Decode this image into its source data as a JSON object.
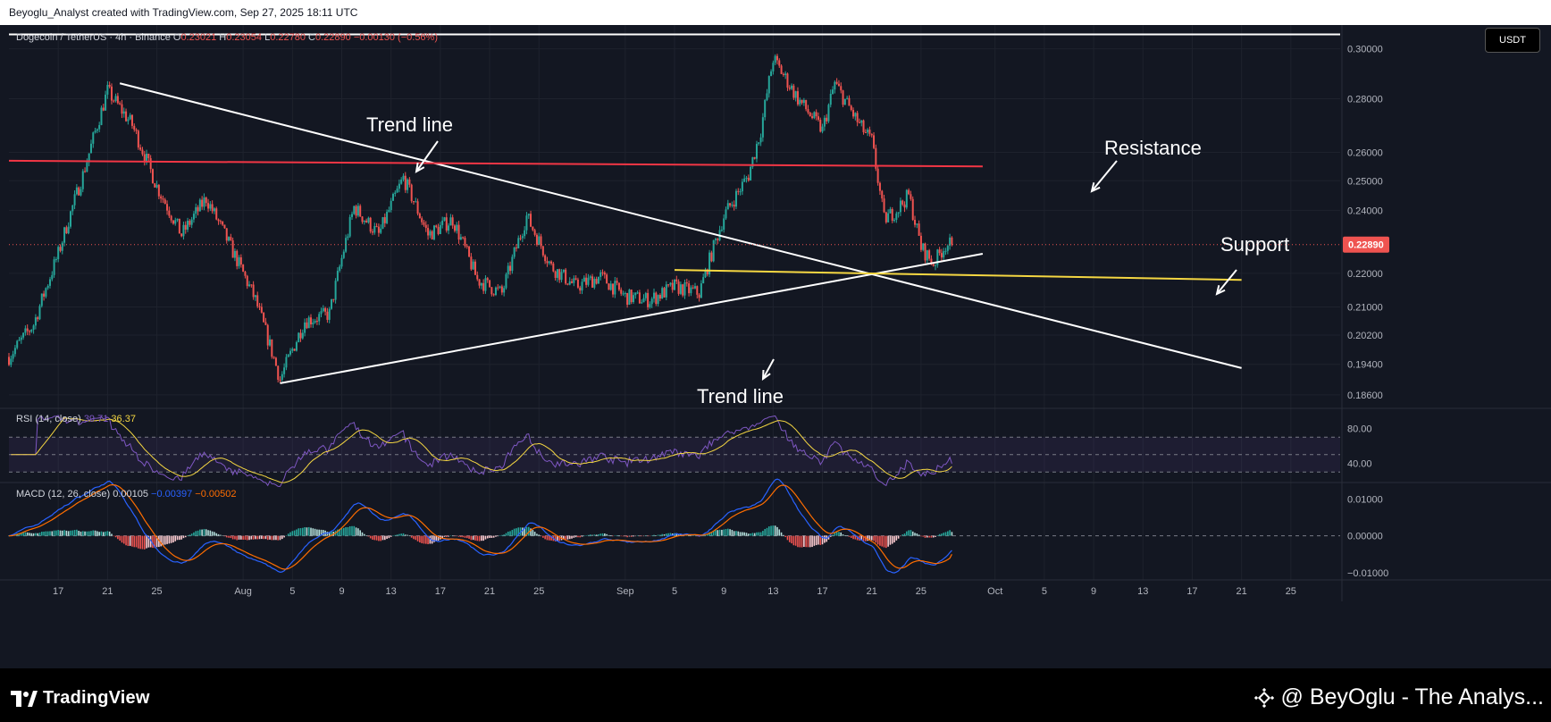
{
  "header": {
    "credit": "Beyoglu_Analyst created with TradingView.com, Sep 27, 2025 18:11 UTC"
  },
  "legend": {
    "symbol": "Dogecoin / TetherUS · 4h · Binance",
    "open_label": "O",
    "open": "0.23021",
    "high_label": "H",
    "high": "0.23054",
    "low_label": "L",
    "low": "0.22780",
    "close_label": "C",
    "close": "0.22890",
    "change": "−0.00130 (−0.56%)"
  },
  "currency_button": "USDT",
  "price_axis": {
    "ticks": [
      "0.30000",
      "0.28000",
      "0.26000",
      "0.25000",
      "0.24000",
      "0.22000",
      "0.21000",
      "0.20200",
      "0.19400",
      "0.18600"
    ],
    "last_price": "0.22890"
  },
  "annotations": {
    "trend_line_top": "Trend line",
    "trend_line_bottom": "Trend line",
    "resistance": "Resistance",
    "support": "Support"
  },
  "rsi": {
    "label": "RSI (14, close)",
    "value": "39.71",
    "ma_value": "36.37",
    "ticks": [
      "80.00",
      "40.00"
    ]
  },
  "macd": {
    "label": "MACD (12, 26, close)",
    "histogram": "0.00105",
    "macd": "−0.00397",
    "signal": "−0.00502",
    "ticks": [
      "0.01000",
      "0.00000",
      "−0.01000"
    ]
  },
  "time_axis": {
    "ticks": [
      "17",
      "21",
      "25",
      "Aug",
      "5",
      "9",
      "13",
      "17",
      "21",
      "25",
      "Sep",
      "5",
      "9",
      "13",
      "17",
      "21",
      "25",
      "Oct",
      "5",
      "9",
      "13",
      "17",
      "21",
      "25"
    ]
  },
  "footer": {
    "brand": "TradingView",
    "author": "@ BeyOglu - The Analys..."
  },
  "colors": {
    "background": "#131722",
    "up": "#26a69a",
    "down": "#ef5350",
    "resistance": "#f23645",
    "support": "#f5d742",
    "trend": "#ffffff",
    "rsi": "#7e57c2",
    "rsi_ma": "#f5d742",
    "macd": "#2962ff",
    "signal": "#ff6d00"
  },
  "chart_data": {
    "type": "candlestick",
    "title": "Dogecoin / TetherUS · 4h · Binance",
    "y_scale": "log",
    "ylim": [
      0.183,
      0.31
    ],
    "x_range": [
      "Jul 13",
      "Oct 29"
    ],
    "price_path": [
      [
        "Jul 13",
        0.196
      ],
      [
        "Jul 15",
        0.205
      ],
      [
        "Jul 17",
        0.226
      ],
      [
        "Jul 19",
        0.252
      ],
      [
        "Jul 21",
        0.283
      ],
      [
        "Jul 23",
        0.27
      ],
      [
        "Jul 25",
        0.248
      ],
      [
        "Jul 27",
        0.232
      ],
      [
        "Jul 29",
        0.244
      ],
      [
        "Jul 31",
        0.228
      ],
      [
        "Aug 2",
        0.212
      ],
      [
        "Aug 4",
        0.19
      ],
      [
        "Aug 6",
        0.206
      ],
      [
        "Aug 8",
        0.208
      ],
      [
        "Aug 10",
        0.241
      ],
      [
        "Aug 12",
        0.232
      ],
      [
        "Aug 14",
        0.251
      ],
      [
        "Aug 16",
        0.232
      ],
      [
        "Aug 18",
        0.237
      ],
      [
        "Aug 20",
        0.218
      ],
      [
        "Aug 22",
        0.214
      ],
      [
        "Aug 24",
        0.238
      ],
      [
        "Aug 26",
        0.222
      ],
      [
        "Aug 28",
        0.216
      ],
      [
        "Aug 30",
        0.219
      ],
      [
        "Sep 1",
        0.213
      ],
      [
        "Sep 3",
        0.212
      ],
      [
        "Sep 5",
        0.216
      ],
      [
        "Sep 7",
        0.214
      ],
      [
        "Sep 9",
        0.238
      ],
      [
        "Sep 11",
        0.252
      ],
      [
        "Sep 12",
        0.268
      ],
      [
        "Sep 13",
        0.296
      ],
      [
        "Sep 15",
        0.28
      ],
      [
        "Sep 17",
        0.268
      ],
      [
        "Sep 18",
        0.286
      ],
      [
        "Sep 20",
        0.27
      ],
      [
        "Sep 21",
        0.264
      ],
      [
        "Sep 22",
        0.237
      ],
      [
        "Sep 23",
        0.24
      ],
      [
        "Sep 24",
        0.245
      ],
      [
        "Sep 25",
        0.228
      ],
      [
        "Sep 26",
        0.223
      ],
      [
        "Sep 27",
        0.2289
      ]
    ],
    "lines": [
      {
        "label": "Trend line",
        "from": [
          "Jul 22",
          0.286
        ],
        "to": [
          "Oct 21",
          0.193
        ]
      },
      {
        "label": "Trend line",
        "from": [
          "Aug 4",
          0.189
        ],
        "to": [
          "Sep 30",
          0.226
        ]
      },
      {
        "label": "Resistance",
        "from": [
          "Jul 13",
          0.257
        ],
        "to": [
          "Sep 30",
          0.255
        ]
      },
      {
        "label": "Support",
        "from": [
          "Sep 5",
          0.221
        ],
        "to": [
          "Oct 21",
          0.218
        ]
      },
      {
        "label": "",
        "from": [
          "Jul 13",
          0.306
        ],
        "to": [
          "Oct 29",
          0.306
        ]
      }
    ],
    "rsi": {
      "ylim": [
        20,
        100
      ],
      "bands": [
        30,
        50,
        70
      ],
      "last": 39.71,
      "ma_last": 36.37
    },
    "macd": {
      "ylim": [
        -0.012,
        0.014
      ],
      "histogram_last": 0.00105,
      "macd_last": -0.00397,
      "signal_last": -0.00502
    }
  }
}
